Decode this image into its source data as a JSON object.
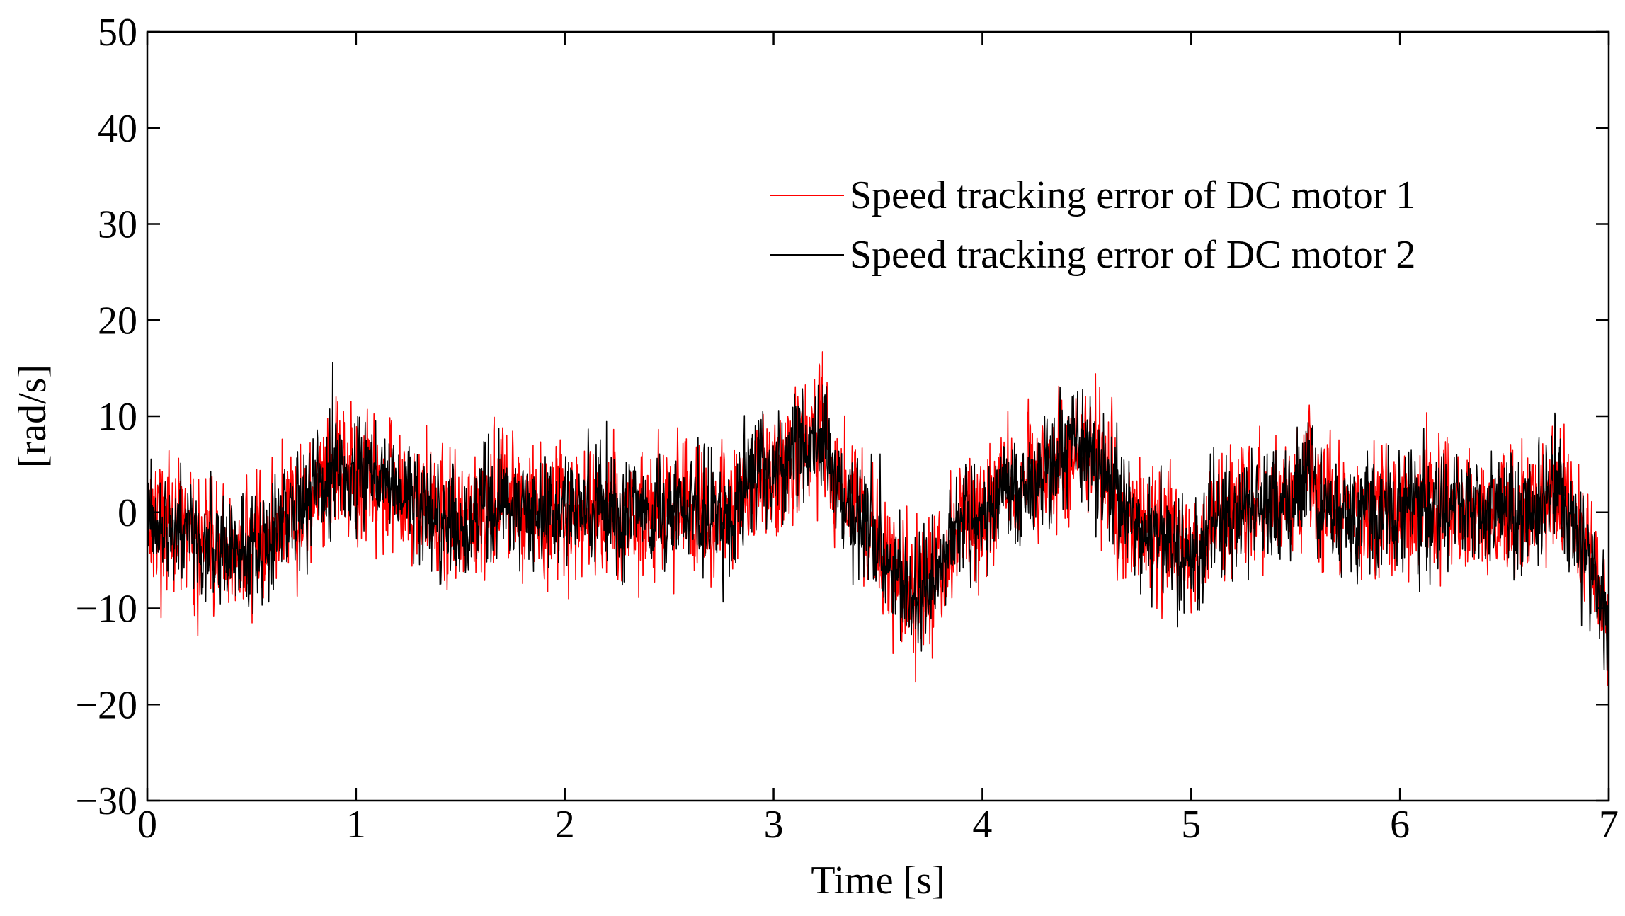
{
  "chart_data": {
    "type": "line",
    "title": "",
    "xlabel": "Time [s]",
    "ylabel": "[rad/s]",
    "xlim": [
      0,
      7
    ],
    "ylim": [
      -30,
      50
    ],
    "xticks": [
      0,
      1,
      2,
      3,
      4,
      5,
      6,
      7
    ],
    "yticks": [
      -30,
      -20,
      -10,
      0,
      10,
      20,
      30,
      40,
      50
    ],
    "xtick_labels": [
      "0",
      "1",
      "2",
      "3",
      "4",
      "5",
      "6",
      "7"
    ],
    "ytick_labels": [
      "−30",
      "−20",
      "−10",
      "0",
      "10",
      "20",
      "30",
      "40",
      "50"
    ],
    "grid": false,
    "legend_position": "upper-right",
    "trend_t": [
      0.0,
      0.05,
      0.15,
      0.25,
      0.35,
      0.45,
      0.55,
      0.65,
      0.75,
      0.85,
      0.95,
      1.05,
      1.15,
      1.25,
      1.35,
      1.45,
      1.5,
      1.6,
      1.7,
      1.8,
      1.9,
      2.0,
      2.1,
      2.2,
      2.3,
      2.4,
      2.5,
      2.6,
      2.7,
      2.8,
      2.9,
      3.0,
      3.1,
      3.2,
      3.25,
      3.3,
      3.4,
      3.5,
      3.6,
      3.65,
      3.7,
      3.8,
      3.9,
      4.0,
      4.1,
      4.2,
      4.3,
      4.4,
      4.5,
      4.55,
      4.6,
      4.7,
      4.8,
      4.9,
      4.95,
      5.0,
      5.05,
      5.1,
      5.2,
      5.3,
      5.4,
      5.5,
      5.55,
      5.6,
      5.7,
      5.8,
      5.9,
      6.0,
      6.1,
      6.2,
      6.3,
      6.4,
      6.5,
      6.6,
      6.7,
      6.75,
      6.8,
      6.9,
      7.0
    ],
    "series": [
      {
        "name": "Speed tracking error of DC motor 1",
        "color": "#ff0000",
        "trend": [
          0,
          -1,
          -2,
          -3,
          -4,
          -4.5,
          -3,
          -1,
          1,
          3,
          4,
          4,
          3,
          1.5,
          0,
          -1,
          -1.5,
          0,
          1.5,
          1,
          0,
          0,
          0,
          0,
          -0.5,
          0,
          0,
          0.5,
          -1,
          0,
          3,
          4,
          6,
          8,
          7,
          3,
          0,
          -3,
          -7,
          -9,
          -8,
          -5,
          -1,
          0,
          2,
          3,
          5,
          6,
          7,
          5,
          3,
          -1,
          -2,
          -3,
          -3.5,
          -6,
          -4,
          -1,
          0,
          0,
          1,
          2,
          4,
          2,
          0,
          -1,
          0,
          0,
          0.5,
          0,
          0,
          0,
          0,
          -1,
          1,
          2,
          0,
          -5,
          -12
        ],
        "noise_amplitude": 3.2,
        "seed": 17
      },
      {
        "name": "Speed tracking error of DC motor 2",
        "color": "#000000",
        "trend": [
          0,
          -1,
          -2,
          -3,
          -4,
          -4.5,
          -3,
          -1,
          1,
          3,
          4,
          4,
          3,
          1.5,
          0,
          -1,
          -1.5,
          0,
          1.5,
          1,
          0,
          0,
          0,
          0,
          -0.5,
          0,
          0,
          0.5,
          -1,
          0,
          3,
          4,
          6,
          8,
          7,
          3,
          0,
          -3,
          -7,
          -9,
          -8,
          -5,
          -1,
          0,
          2,
          3,
          5,
          6,
          7,
          5,
          3,
          -1,
          -2,
          -3,
          -3.5,
          -6,
          -4,
          -1,
          0,
          0,
          1,
          2,
          4,
          2,
          0,
          -1,
          0,
          0,
          0.5,
          0,
          0,
          0,
          0,
          -1,
          1,
          2,
          0,
          -5,
          -12
        ],
        "noise_amplitude": 2.8,
        "seed": 91
      }
    ]
  }
}
